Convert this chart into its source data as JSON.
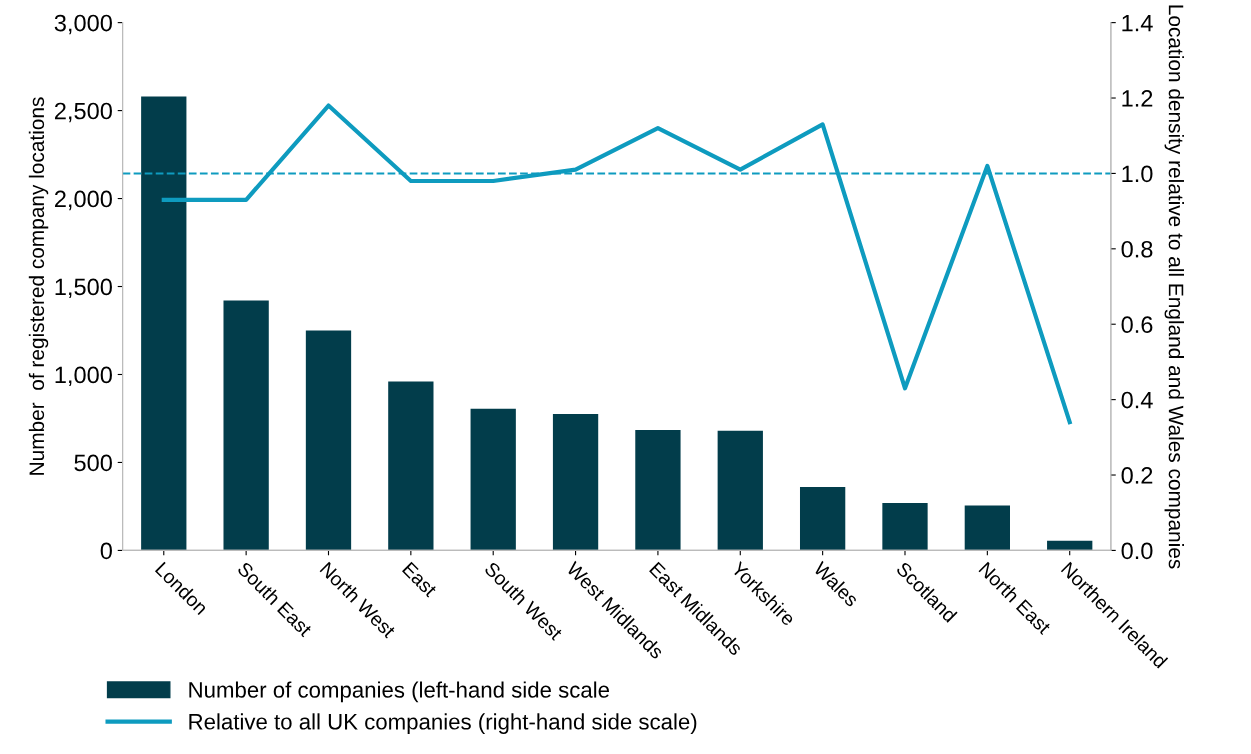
{
  "chart_data": {
    "type": "bar",
    "categories": [
      "London",
      "South East",
      "North West",
      "East",
      "South West",
      "West Midlands",
      "East Midlands",
      "Yorkshire",
      "Wales",
      "Scotland",
      "North East",
      "Northern Ireland"
    ],
    "ylabel": "Number  of registered company locations",
    "y2label": "Location density relative to all England and Wales companies",
    "series": [
      {
        "name": "Number of companies (left-hand side scale",
        "color": "#023d4b",
        "values": [
          2580,
          1420,
          1250,
          960,
          805,
          775,
          685,
          680,
          360,
          270,
          255,
          55
        ]
      },
      {
        "name": "Relative to all UK companies (right-hand side scale)",
        "type": "line",
        "axis": "y2",
        "color": "#0e9bbf",
        "values": [
          0.93,
          0.93,
          1.18,
          0.98,
          0.98,
          1.01,
          1.12,
          1.01,
          1.13,
          0.43,
          1.02,
          0.34
        ]
      }
    ],
    "ylim": [
      0,
      3000
    ],
    "yticks": [
      0,
      500,
      {
        "value": 1000,
        "label": "1,000"
      },
      {
        "value": 1500,
        "label": "1,500"
      },
      {
        "value": 2000,
        "label": "2,000"
      },
      {
        "value": 2500,
        "label": "2,500"
      },
      {
        "value": 3000,
        "label": "3,000"
      }
    ],
    "y2lim": [
      0,
      1.4
    ],
    "y2ticks": [
      {
        "value": 0,
        "label": "0.0"
      },
      {
        "value": 0.2,
        "label": "0.2"
      },
      {
        "value": 0.4,
        "label": "0.4"
      },
      {
        "value": 0.6,
        "label": "0.6"
      },
      {
        "value": 0.8,
        "label": "0.8"
      },
      {
        "value": 1.0,
        "label": "1.0"
      },
      {
        "value": 1.2,
        "label": "1.2"
      },
      {
        "value": 1.4,
        "label": "1.4"
      }
    ],
    "ref_lines": [
      {
        "axis": "y2",
        "value": 1.0,
        "label": null,
        "color": "#0e9bbf",
        "line_style": "dashed"
      }
    ],
    "grid": false,
    "legend": "bottom left"
  }
}
